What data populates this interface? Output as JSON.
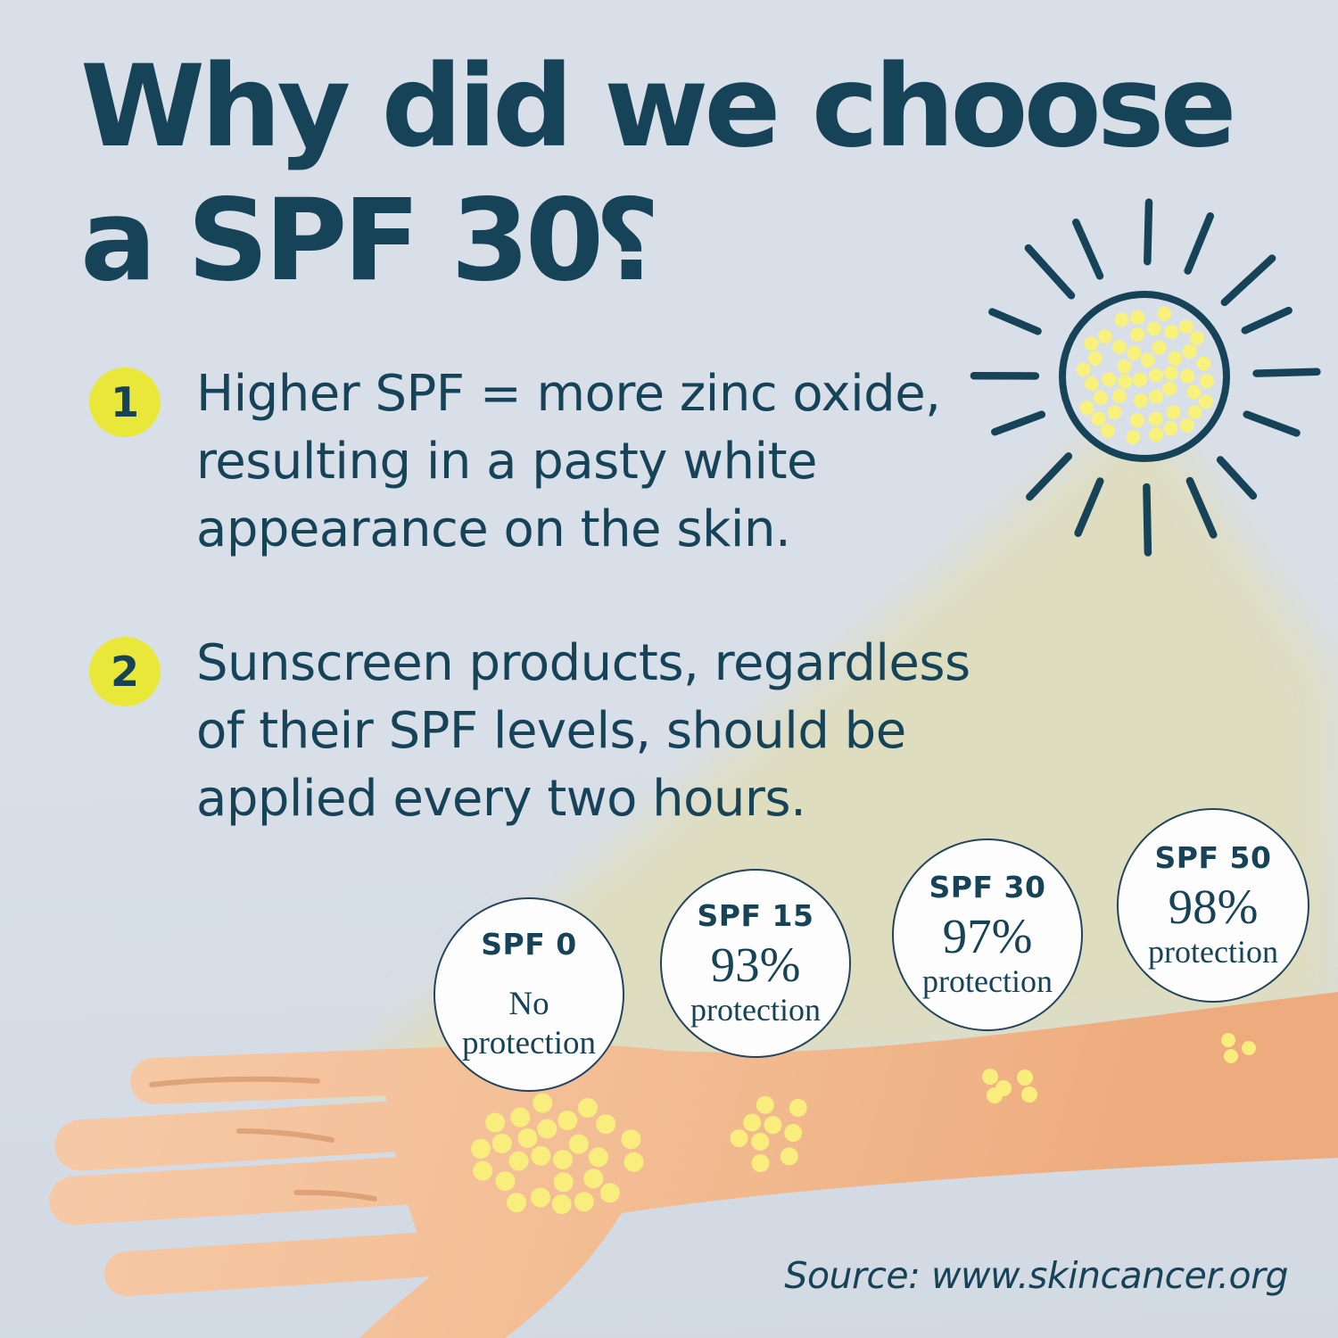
{
  "title": {
    "line1": "Why did we choose",
    "line2": "a SPF 30",
    "question_mark": "?"
  },
  "points": [
    {
      "number": "1",
      "lines": [
        "Higher SPF = more zinc oxide,",
        "resulting in a pasty white",
        "appearance on the skin."
      ]
    },
    {
      "number": "2",
      "lines": [
        "Sunscreen products, regardless",
        "of their SPF levels, should be",
        "applied every two hours."
      ]
    }
  ],
  "spf_circles": [
    {
      "title": "SPF 0",
      "line2": "No",
      "line3": "protection"
    },
    {
      "title": "SPF 15",
      "line2": "93%",
      "line3": "protection"
    },
    {
      "title": "SPF 30",
      "line2": "97%",
      "line3": "protection"
    },
    {
      "title": "SPF 50",
      "line2": "98%",
      "line3": "protection"
    }
  ],
  "source": "Source: www.skincancer.org",
  "colors": {
    "navy": "#174358",
    "background": "#d8dfe9",
    "background_bottom": "#d2d9e2",
    "badge_yellow": "#e9e83a",
    "beam": "#e0ddba",
    "skin_light": "#f6c9a6",
    "skin_mid": "#f3bd94",
    "skin_dark": "#eeab7e",
    "crease": "#dd9f74",
    "sun_dot_yellow": "#f8f27c",
    "sunscreen_dot_yellow": "#f9ee7d",
    "circle_fill": "#fdfdfd",
    "circle_border": "#23445c"
  }
}
